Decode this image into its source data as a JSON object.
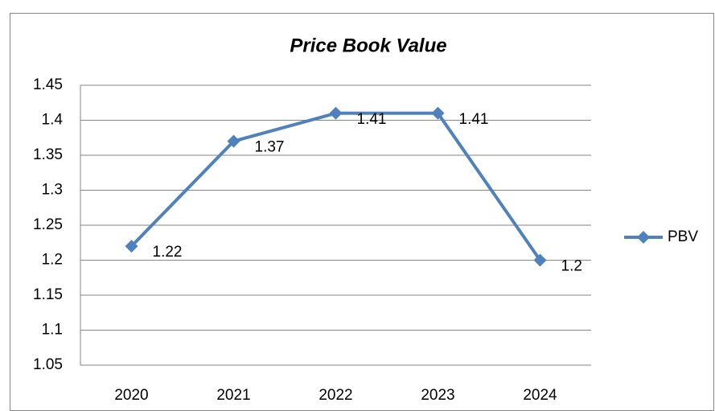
{
  "chart_data": {
    "type": "line",
    "title": "Price Book Value",
    "categories": [
      "2020",
      "2021",
      "2022",
      "2023",
      "2024"
    ],
    "series": [
      {
        "name": "PBV",
        "color": "#4f81bd",
        "values": [
          1.22,
          1.37,
          1.41,
          1.41,
          1.2
        ]
      }
    ],
    "ylim": [
      1.05,
      1.45
    ],
    "yticks": [
      1.05,
      1.1,
      1.15,
      1.2,
      1.25,
      1.3,
      1.35,
      1.4,
      1.45
    ],
    "grid": true,
    "legend": "right",
    "data_labels": true
  }
}
